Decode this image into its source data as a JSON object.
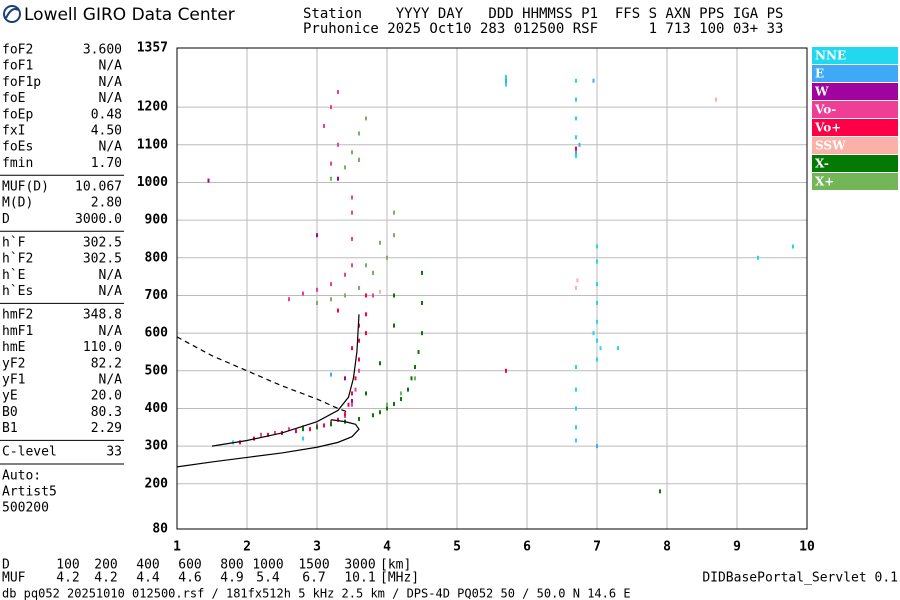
{
  "header": {
    "brand": "Lowell GIRO Data Center",
    "line1": "Station    YYYY DAY   DDD HHMMSS P1  FFS S AXN PPS IGA PS",
    "line2": "Pruhonice 2025 Oct10 283 012500 RSF      1 713 100 03+ 33"
  },
  "params": [
    [
      [
        "foF2",
        "3.600"
      ],
      [
        "foF1",
        "N/A"
      ],
      [
        "foF1p",
        "N/A"
      ],
      [
        "foE",
        "N/A"
      ],
      [
        "foEp",
        "0.48"
      ],
      [
        "fxI",
        "4.50"
      ],
      [
        "foEs",
        "N/A"
      ],
      [
        "fmin",
        "1.70"
      ]
    ],
    [
      [
        "MUF(D)",
        "10.067"
      ],
      [
        "M(D)",
        "2.80"
      ],
      [
        "D",
        "3000.0"
      ]
    ],
    [
      [
        "h`F",
        "302.5"
      ],
      [
        "h`F2",
        "302.5"
      ],
      [
        "h`E",
        "N/A"
      ],
      [
        "h`Es",
        "N/A"
      ]
    ],
    [
      [
        "hmF2",
        "348.8"
      ],
      [
        "hmF1",
        "N/A"
      ],
      [
        "hmE",
        "110.0"
      ],
      [
        "yF2",
        "82.2"
      ],
      [
        "yF1",
        "N/A"
      ],
      [
        "yE",
        "20.0"
      ],
      [
        "B0",
        "80.3"
      ],
      [
        "B1",
        "2.29"
      ]
    ],
    [
      [
        "C-level",
        "33"
      ]
    ]
  ],
  "notes": [
    "Auto:",
    "Artist5",
    "500200"
  ],
  "muf_table": {
    "rows": [
      {
        "label": "D",
        "values": [
          "100",
          "200",
          "400",
          "600",
          "800",
          "1000",
          "1500",
          "3000"
        ],
        "unit": "[km]"
      },
      {
        "label": "MUF",
        "values": [
          "4.2",
          "4.2",
          "4.4",
          "4.6",
          "4.9",
          "5.4",
          "6.7",
          "10.1"
        ],
        "unit": "[MHz]"
      }
    ]
  },
  "footer": "db pq052 20251010 012500.rsf / 181fx512h 5 kHz 2.5 km / DPS-4D PQ052 50 / 50.0 N 14.6 E",
  "servlet": "DIDBasePortal_Servlet 0.1",
  "chart_data": {
    "type": "scatter",
    "grid": true,
    "xlim": [
      1,
      10
    ],
    "xticks": [
      1,
      2,
      3,
      4,
      5,
      6,
      7,
      8,
      9,
      10
    ],
    "ylim": [
      80,
      1357
    ],
    "yticks": [
      80,
      200,
      300,
      400,
      500,
      600,
      700,
      800,
      900,
      1000,
      1100,
      1200,
      1357
    ],
    "series": [
      {
        "name": "NNE",
        "color": "#22d8ee",
        "x": [
          6.7,
          6.7,
          6.7,
          6.7,
          6.7,
          6.7,
          6.7,
          6.7,
          6.7,
          6.7,
          7.0,
          7.0,
          7.0,
          7.0,
          7.0,
          7.0,
          7.0,
          6.95,
          7.05,
          1.8,
          2.8,
          5.7,
          5.7,
          9.3,
          9.8,
          7.3
        ],
        "values": [
          315,
          350,
          400,
          450,
          510,
          1070,
          1120,
          1170,
          1220,
          1270,
          530,
          580,
          630,
          680,
          730,
          790,
          830,
          600,
          560,
          310,
          320,
          1260,
          1280,
          800,
          830,
          560
        ]
      },
      {
        "name": "E",
        "color": "#3fa9f5",
        "x": [
          6.7,
          6.75,
          5.7,
          6.95,
          3.2,
          7.0
        ],
        "values": [
          1080,
          1100,
          1270,
          1270,
          490,
          300
        ]
      },
      {
        "name": "W",
        "color": "#a0049e",
        "x": [
          3.5,
          3.4,
          3.3,
          3.6,
          3.0,
          1.45
        ],
        "values": [
          420,
          480,
          1010,
          1060,
          860,
          1005
        ]
      },
      {
        "name": "Vo-",
        "color": "#ee3e96",
        "x": [
          2.2,
          2.4,
          2.6,
          2.8,
          3.0,
          3.2,
          3.4,
          3.5,
          3.55,
          3.6,
          2.6,
          2.8,
          3.0,
          3.2,
          3.4,
          3.5,
          3.5,
          3.5,
          3.5,
          3.1,
          3.2,
          3.2,
          3.3,
          3.3,
          3.8,
          3.8
        ],
        "values": [
          330,
          335,
          345,
          350,
          355,
          365,
          380,
          410,
          450,
          500,
          690,
          705,
          715,
          730,
          755,
          780,
          850,
          920,
          960,
          1150,
          1050,
          1200,
          1100,
          1240,
          700,
          760
        ]
      },
      {
        "name": "Vo+",
        "color": "#ff0047",
        "x": [
          1.9,
          2.1,
          2.3,
          2.5,
          2.7,
          2.9,
          3.1,
          3.2,
          3.3,
          3.4,
          3.45,
          3.5,
          3.55,
          3.6,
          3.6,
          3.6,
          3.7,
          3.7,
          3.7,
          3.3,
          3.5,
          6.7,
          5.7
        ],
        "values": [
          310,
          320,
          330,
          335,
          340,
          345,
          355,
          360,
          370,
          385,
          410,
          440,
          480,
          530,
          580,
          620,
          600,
          650,
          700,
          660,
          560,
          1090,
          500
        ]
      },
      {
        "name": "SSW",
        "color": "#f9b1a8",
        "x": [
          6.7,
          6.72,
          3.9,
          8.7
        ],
        "values": [
          720,
          740,
          710,
          1220
        ]
      },
      {
        "name": "X-",
        "color": "#047a04",
        "x": [
          2.8,
          3.0,
          3.2,
          3.4,
          3.6,
          3.8,
          3.9,
          4.0,
          4.1,
          4.2,
          4.3,
          4.35,
          4.4,
          4.45,
          4.5,
          4.5,
          4.5,
          4.1,
          4.1,
          7.9,
          3.7,
          3.9
        ],
        "values": [
          345,
          350,
          358,
          365,
          372,
          382,
          390,
          400,
          412,
          425,
          450,
          480,
          510,
          550,
          600,
          680,
          760,
          700,
          620,
          180,
          440,
          520
        ]
      },
      {
        "name": "X+",
        "color": "#73b65a",
        "x": [
          3.0,
          3.2,
          3.4,
          3.6,
          3.8,
          4.0,
          4.1,
          4.1,
          3.9,
          3.7,
          3.2,
          3.4,
          3.5,
          3.6,
          3.7,
          3.6,
          4.0,
          4.2,
          4.4
        ],
        "values": [
          680,
          690,
          700,
          720,
          760,
          800,
          860,
          920,
          840,
          780,
          1010,
          1040,
          1080,
          1130,
          1170,
          1060,
          410,
          440,
          480
        ]
      },
      {
        "color": "#000000",
        "style": "solid",
        "x": [
          1.0,
          1.5,
          2.0,
          2.5,
          3.0,
          3.3,
          3.5,
          3.6,
          3.55,
          3.4,
          3.2
        ],
        "values": [
          245,
          258,
          270,
          282,
          297,
          310,
          325,
          345,
          358,
          365,
          370
        ]
      },
      {
        "color": "#000000",
        "style": "solid",
        "x": [
          1.5,
          2.0,
          2.5,
          3.0,
          3.3,
          3.45,
          3.52,
          3.57,
          3.6
        ],
        "values": [
          300,
          315,
          335,
          365,
          395,
          430,
          480,
          550,
          650
        ]
      },
      {
        "color": "#000000",
        "style": "dashed",
        "x": [
          1.0,
          1.5,
          2.0,
          2.5,
          3.0,
          3.3,
          3.45
        ],
        "values": [
          590,
          540,
          500,
          460,
          425,
          400,
          390
        ]
      }
    ]
  }
}
